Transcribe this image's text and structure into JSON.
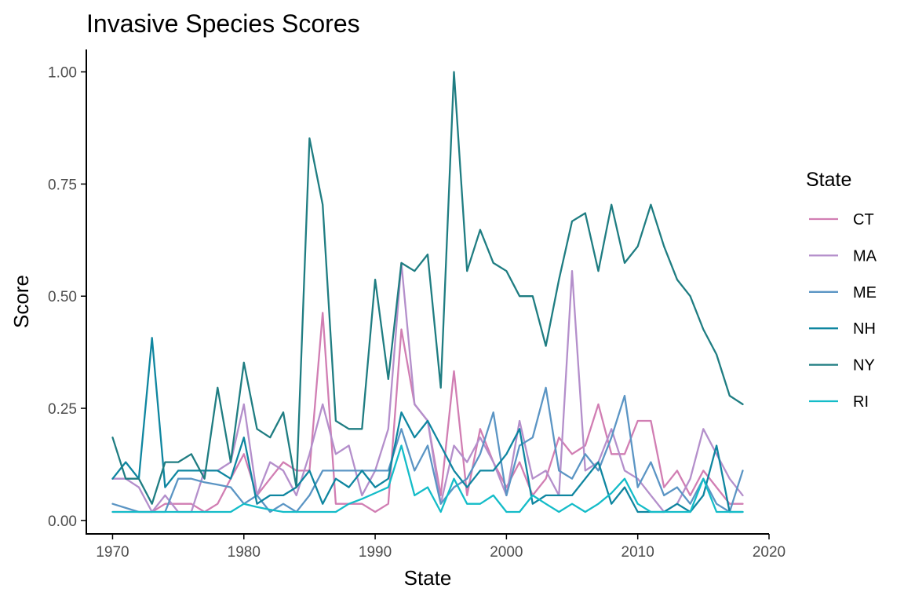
{
  "chart_data": {
    "type": "line",
    "title": "Invasive Species Scores",
    "xlabel": "State",
    "ylabel": "Score",
    "xlim": [
      1968,
      2020
    ],
    "ylim": [
      -0.03,
      1.05
    ],
    "x_ticks": [
      1970,
      1980,
      1990,
      2000,
      2010,
      2020
    ],
    "y_ticks": [
      0.0,
      0.25,
      0.5,
      0.75,
      1.0
    ],
    "x_tick_labels": [
      "1970",
      "1980",
      "1990",
      "2000",
      "2010",
      "2020"
    ],
    "y_tick_labels": [
      "0.00",
      "0.25",
      "0.50",
      "0.75",
      "1.00"
    ],
    "grid": false,
    "legend": {
      "title": "State",
      "position": "right"
    },
    "x": [
      1970,
      1971,
      1972,
      1973,
      1974,
      1975,
      1976,
      1977,
      1978,
      1979,
      1980,
      1981,
      1982,
      1983,
      1984,
      1985,
      1986,
      1987,
      1988,
      1989,
      1990,
      1991,
      1992,
      1993,
      1994,
      1995,
      1996,
      1997,
      1998,
      1999,
      2000,
      2001,
      2002,
      2003,
      2004,
      2005,
      2006,
      2007,
      2008,
      2009,
      2010,
      2011,
      2012,
      2013,
      2014,
      2015,
      2016,
      2017,
      2018
    ],
    "series": [
      {
        "name": "CT",
        "color": "#d17eb3",
        "values": [
          0.019,
          0.019,
          0.019,
          0.019,
          0.037,
          0.037,
          0.037,
          0.019,
          0.037,
          0.093,
          0.148,
          0.056,
          0.093,
          0.13,
          0.111,
          0.111,
          0.463,
          0.037,
          0.037,
          0.037,
          0.019,
          0.037,
          0.426,
          0.259,
          0.222,
          0.056,
          0.333,
          0.056,
          0.204,
          0.13,
          0.074,
          0.13,
          0.056,
          0.093,
          0.185,
          0.148,
          0.167,
          0.259,
          0.148,
          0.148,
          0.222,
          0.222,
          0.074,
          0.111,
          0.056,
          0.111,
          0.074,
          0.037,
          0.037
        ]
      },
      {
        "name": "MA",
        "color": "#b48fcb",
        "values": [
          0.093,
          0.093,
          0.074,
          0.019,
          0.056,
          0.019,
          0.019,
          0.111,
          0.111,
          0.13,
          0.259,
          0.056,
          0.13,
          0.111,
          0.056,
          0.148,
          0.259,
          0.148,
          0.167,
          0.056,
          0.111,
          0.204,
          0.574,
          0.259,
          0.222,
          0.037,
          0.167,
          0.13,
          0.185,
          0.13,
          0.056,
          0.222,
          0.093,
          0.111,
          0.056,
          0.556,
          0.111,
          0.13,
          0.204,
          0.111,
          0.093,
          0.056,
          0.019,
          0.037,
          0.093,
          0.204,
          0.148,
          0.093,
          0.056
        ]
      },
      {
        "name": "ME",
        "color": "#5b95c4",
        "values": [
          0.037,
          0.028,
          0.019,
          0.019,
          0.019,
          0.093,
          0.093,
          0.085,
          0.08,
          0.074,
          0.037,
          0.056,
          0.019,
          0.037,
          0.019,
          0.056,
          0.111,
          0.111,
          0.111,
          0.111,
          0.111,
          0.111,
          0.204,
          0.111,
          0.167,
          0.037,
          0.074,
          0.093,
          0.148,
          0.241,
          0.056,
          0.167,
          0.185,
          0.296,
          0.111,
          0.093,
          0.148,
          0.111,
          0.185,
          0.278,
          0.074,
          0.13,
          0.056,
          0.074,
          0.037,
          0.093,
          0.037,
          0.019,
          0.111
        ]
      },
      {
        "name": "NH",
        "color": "#0f86a0",
        "values": [
          0.093,
          0.13,
          0.093,
          0.407,
          0.074,
          0.111,
          0.111,
          0.111,
          0.111,
          0.093,
          0.185,
          0.037,
          0.056,
          0.056,
          0.074,
          0.111,
          0.037,
          0.093,
          0.074,
          0.111,
          0.074,
          0.093,
          0.241,
          0.185,
          0.222,
          0.167,
          0.111,
          0.074,
          0.111,
          0.111,
          0.148,
          0.204,
          0.037,
          0.056,
          0.056,
          0.056,
          0.093,
          0.13,
          0.037,
          0.074,
          0.019,
          0.019,
          0.019,
          0.037,
          0.019,
          0.056,
          0.167,
          0.019,
          0.019
        ]
      },
      {
        "name": "NY",
        "color": "#1f7d82",
        "values": [
          0.185,
          0.093,
          0.093,
          0.037,
          0.13,
          0.13,
          0.148,
          0.093,
          0.296,
          0.13,
          0.352,
          0.204,
          0.185,
          0.241,
          0.074,
          0.852,
          0.704,
          0.222,
          0.204,
          0.204,
          0.537,
          0.315,
          0.574,
          0.556,
          0.593,
          0.296,
          1.0,
          0.556,
          0.648,
          0.574,
          0.556,
          0.5,
          0.5,
          0.389,
          0.537,
          0.667,
          0.685,
          0.556,
          0.704,
          0.574,
          0.611,
          0.704,
          0.611,
          0.537,
          0.5,
          0.426,
          0.37,
          0.278,
          0.259
        ]
      },
      {
        "name": "RI",
        "color": "#14bcc8",
        "values": [
          0.019,
          0.019,
          0.019,
          0.019,
          0.019,
          0.019,
          0.019,
          0.019,
          0.019,
          0.019,
          0.037,
          0.03,
          0.024,
          0.019,
          0.019,
          0.019,
          0.019,
          0.019,
          0.037,
          0.048,
          0.061,
          0.074,
          0.167,
          0.056,
          0.074,
          0.019,
          0.093,
          0.037,
          0.037,
          0.056,
          0.019,
          0.019,
          0.056,
          0.037,
          0.019,
          0.037,
          0.019,
          0.037,
          0.061,
          0.093,
          0.037,
          0.019,
          0.019,
          0.019,
          0.019,
          0.093,
          0.019,
          0.019,
          0.019
        ]
      }
    ]
  }
}
